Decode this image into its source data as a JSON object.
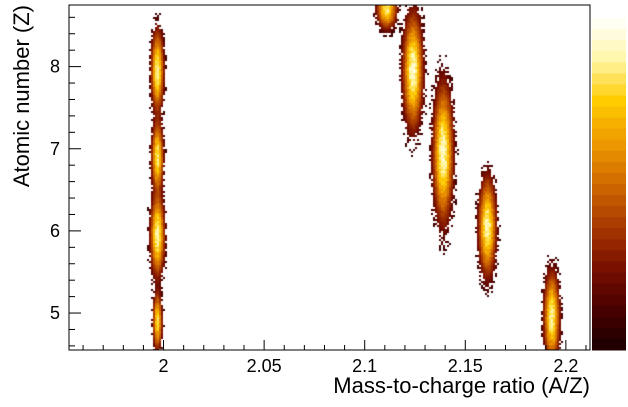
{
  "chart_data": {
    "type": "heatmap",
    "title": "",
    "xlabel": "Mass-to-charge ratio (A/Z)",
    "ylabel": "Atomic number (Z)",
    "xlim": [
      1.953,
      2.212
    ],
    "ylim": [
      4.55,
      8.75
    ],
    "x_ticks": [
      {
        "value": 2.0,
        "label": "2"
      },
      {
        "value": 2.05,
        "label": "2.05"
      },
      {
        "value": 2.1,
        "label": "2.1"
      },
      {
        "value": 2.15,
        "label": "2.15"
      },
      {
        "value": 2.2,
        "label": "2.2"
      }
    ],
    "y_ticks": [
      {
        "value": 5,
        "label": "5"
      },
      {
        "value": 6,
        "label": "6"
      },
      {
        "value": 7,
        "label": "7"
      },
      {
        "value": 8,
        "label": "8"
      }
    ],
    "grid": false,
    "colormap": [
      "#1a0000",
      "#4a0000",
      "#7a1000",
      "#a83a00",
      "#d06a00",
      "#ee9a00",
      "#ffcc00",
      "#fff6a8",
      "#ffffff"
    ],
    "colorbar": {
      "ticks_labeled": false
    },
    "clusters": [
      {
        "x": 1.997,
        "y": 4.9,
        "sx": 0.0012,
        "sy": 0.18,
        "peak": 0.75
      },
      {
        "x": 1.997,
        "y": 5.95,
        "sx": 0.0018,
        "sy": 0.25,
        "peak": 0.95
      },
      {
        "x": 1.997,
        "y": 6.9,
        "sx": 0.0015,
        "sy": 0.22,
        "peak": 0.85
      },
      {
        "x": 1.997,
        "y": 7.95,
        "sx": 0.0016,
        "sy": 0.25,
        "peak": 0.9
      },
      {
        "x": 2.111,
        "y": 8.7,
        "sx": 0.0025,
        "sy": 0.12,
        "peak": 0.85
      },
      {
        "x": 2.124,
        "y": 7.95,
        "sx": 0.0025,
        "sy": 0.35,
        "peak": 1.0
      },
      {
        "x": 2.139,
        "y": 6.95,
        "sx": 0.0025,
        "sy": 0.42,
        "peak": 1.0
      },
      {
        "x": 2.161,
        "y": 6.05,
        "sx": 0.0022,
        "sy": 0.3,
        "peak": 0.95
      },
      {
        "x": 2.193,
        "y": 4.95,
        "sx": 0.002,
        "sy": 0.28,
        "peak": 0.9
      }
    ]
  }
}
